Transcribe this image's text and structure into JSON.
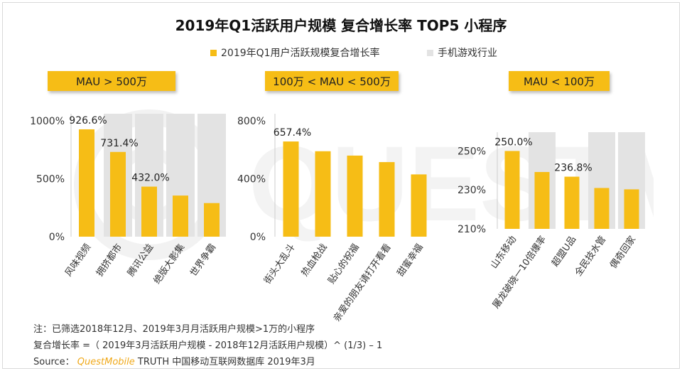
{
  "title": "2019年Q1活跃用户规模 复合增长率 TOP5 小程序",
  "legend": [
    {
      "label": "2019年Q1用户活跃规模复合增长率",
      "color": "#f6bd16"
    },
    {
      "label": "手机游戏行业",
      "color": "#e3e3e3"
    }
  ],
  "colors": {
    "bar": "#f6bd16",
    "background_band": "#e3e3e3",
    "badge": "#f6bd16"
  },
  "chart_data": [
    {
      "type": "bar",
      "group_label": "MAU > 500万",
      "categories": [
        "风味视频",
        "拥挤都市",
        "腾讯公益",
        "绝版大影集",
        "世界争霸"
      ],
      "values": [
        926.6,
        731.4,
        432.0,
        355,
        290
      ],
      "data_labels": [
        "926.6%",
        "731.4%",
        "432.0%",
        "",
        ""
      ],
      "highlight": [
        false,
        true,
        true,
        true,
        true
      ],
      "yticks": [
        "0%",
        "500%",
        "1000%"
      ],
      "ylim": [
        0,
        1000
      ]
    },
    {
      "type": "bar",
      "group_label": "100万 < MAU < 500万",
      "categories": [
        "街头大乱斗",
        "热血枪战",
        "贴心的祝福",
        "亲爱的朋友请打开看看",
        "甜蜜幸福"
      ],
      "values": [
        657.4,
        590,
        560,
        515,
        430
      ],
      "data_labels": [
        "657.4%",
        "",
        "",
        "",
        ""
      ],
      "highlight": [
        false,
        false,
        false,
        false,
        false
      ],
      "yticks": [
        "0%",
        "400%",
        "800%"
      ],
      "ylim": [
        0,
        800
      ]
    },
    {
      "type": "bar",
      "group_label": "MAU < 100万",
      "categories": [
        "山东移动",
        "屠龙破晓一10倍爆率",
        "超盟U品",
        "全民技水管",
        "偶奇回家"
      ],
      "values": [
        250.0,
        239.2,
        236.8,
        231.0,
        230.3
      ],
      "data_labels": [
        "250.0%",
        "",
        "236.8%",
        "",
        ""
      ],
      "highlight": [
        false,
        true,
        false,
        true,
        true
      ],
      "yticks": [
        "210%",
        "230%",
        "250%"
      ],
      "ylim": [
        210,
        256
      ]
    }
  ],
  "notes": {
    "line1": "注：已筛选2018年12月、2019年3月月活跃用户规模>1万的小程序",
    "line2": "复合增长率 =（ 2019年3月活跃用户规模 - 2018年12月活跃用户规模）^ (1/3) – 1",
    "source_prefix": "Source：",
    "source_brand": "QuestMobile",
    "source_suffix": "TRUTH 中国移动互联网数据库 2019年3月"
  }
}
